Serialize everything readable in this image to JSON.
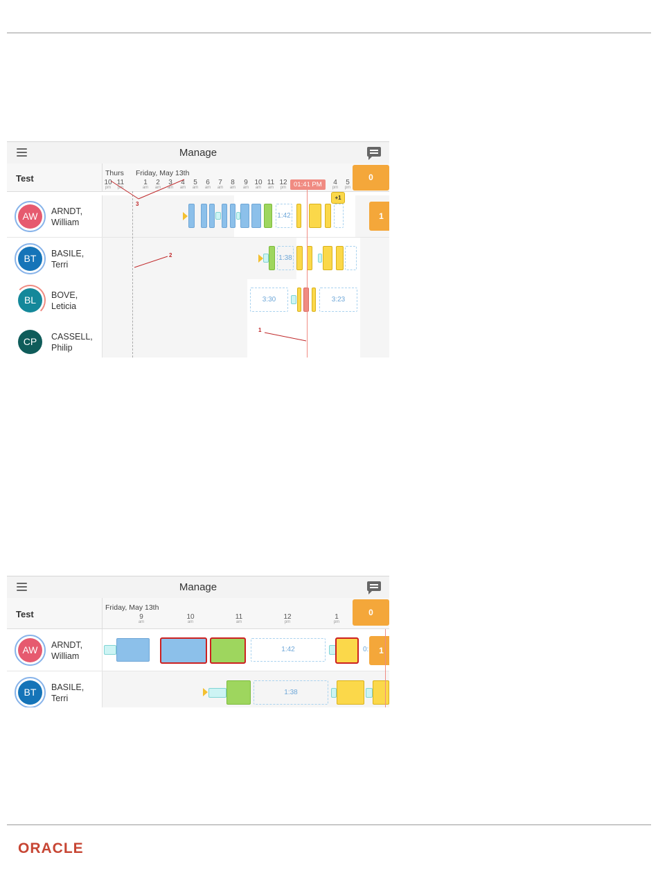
{
  "screenshot1": {
    "app_title": "Manage",
    "group": "Test",
    "day_labels": [
      "Thurs",
      "Friday, May 13th"
    ],
    "ticks": [
      {
        "h": "10",
        "ap": "pm"
      },
      {
        "h": "11",
        "ap": "pm"
      },
      {
        "h": "1",
        "ap": "am"
      },
      {
        "h": "2",
        "ap": "am"
      },
      {
        "h": "3",
        "ap": "am"
      },
      {
        "h": "4",
        "ap": "am"
      },
      {
        "h": "5",
        "ap": "am"
      },
      {
        "h": "6",
        "ap": "am"
      },
      {
        "h": "7",
        "ap": "am"
      },
      {
        "h": "8",
        "ap": "am"
      },
      {
        "h": "9",
        "ap": "am"
      },
      {
        "h": "10",
        "ap": "am"
      },
      {
        "h": "11",
        "ap": "am"
      },
      {
        "h": "12",
        "ap": "pm"
      },
      {
        "h": "4",
        "ap": "pm"
      },
      {
        "h": "5",
        "ap": "pm"
      }
    ],
    "current_time": "01:41 PM",
    "header_count": "0",
    "rows": [
      {
        "initials": "AW",
        "last": "ARNDT,",
        "first": "William",
        "color": "#e65a6f",
        "count": "1",
        "plus": "+1",
        "durations": [
          "1:42"
        ]
      },
      {
        "initials": "BT",
        "last": "BASILE,",
        "first": "Terri",
        "color": "#1574b8",
        "durations": [
          "1:38"
        ]
      },
      {
        "initials": "BL",
        "last": "BOVE,",
        "first": "Leticia",
        "color": "#14889a",
        "durations": [
          "3:30",
          "3:23"
        ]
      },
      {
        "initials": "CP",
        "last": "CASSELL,",
        "first": "Philip",
        "color": "#0f5c5a"
      }
    ],
    "callouts": [
      "1",
      "2",
      "3"
    ]
  },
  "screenshot2": {
    "app_title": "Manage",
    "group": "Test",
    "day_label": "Friday, May 13th",
    "ticks": [
      {
        "h": "9",
        "ap": "am"
      },
      {
        "h": "10",
        "ap": "am"
      },
      {
        "h": "11",
        "ap": "am"
      },
      {
        "h": "12",
        "ap": "pm"
      },
      {
        "h": "1",
        "ap": "pm"
      }
    ],
    "header_count": "0",
    "rows": [
      {
        "initials": "AW",
        "last": "ARNDT,",
        "first": "William",
        "color": "#e65a6f",
        "count": "1",
        "durations": [
          "1:42",
          "0:"
        ]
      },
      {
        "initials": "BT",
        "last": "BASILE,",
        "first": "Terri",
        "color": "#1574b8",
        "durations": [
          "1:38"
        ]
      }
    ]
  },
  "footer": {
    "logo": "ORACLE"
  },
  "colors": {
    "accent_orange": "#f4a73a",
    "now_line": "#f08b82",
    "logo_red": "#c74634"
  }
}
